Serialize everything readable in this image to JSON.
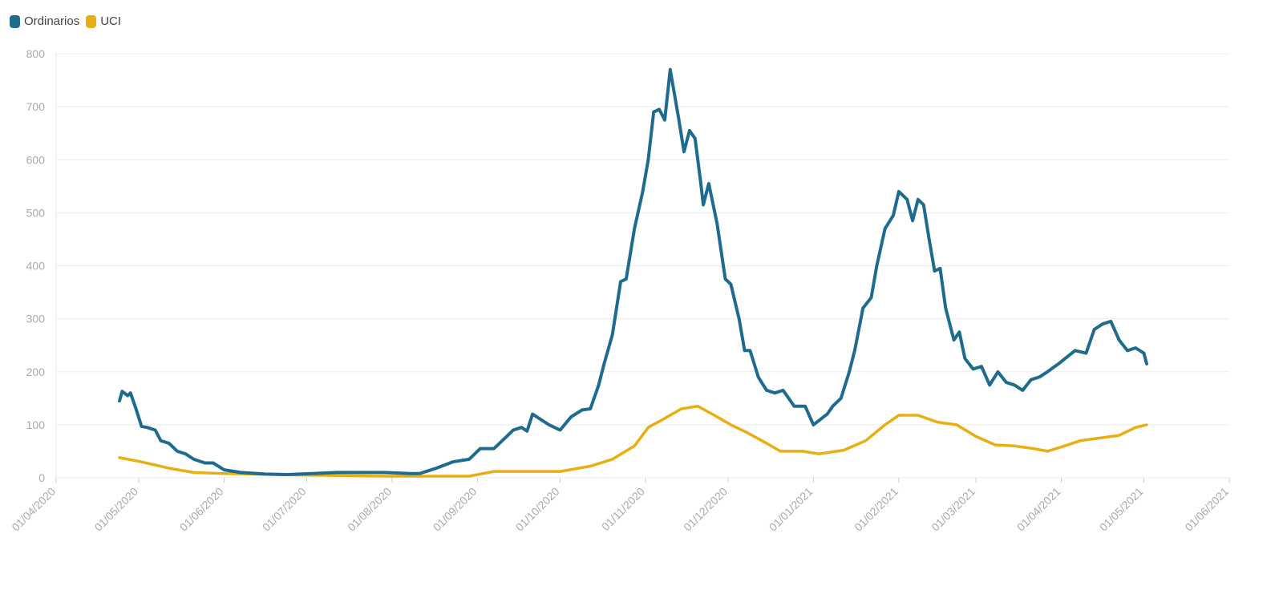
{
  "chart_data": {
    "type": "line",
    "title": "",
    "xlabel": "",
    "ylabel": "",
    "ylim": [
      0,
      800
    ],
    "xlim": [
      "2020-04-01",
      "2021-06-01"
    ],
    "yticks": [
      0,
      100,
      200,
      300,
      400,
      500,
      600,
      700,
      800
    ],
    "xticks": [
      {
        "date": "2020-04-01",
        "label": "01/04/2020"
      },
      {
        "date": "2020-05-01",
        "label": "01/05/2020"
      },
      {
        "date": "2020-06-01",
        "label": "01/06/2020"
      },
      {
        "date": "2020-07-01",
        "label": "01/07/2020"
      },
      {
        "date": "2020-08-01",
        "label": "01/08/2020"
      },
      {
        "date": "2020-09-01",
        "label": "01/09/2020"
      },
      {
        "date": "2020-10-01",
        "label": "01/10/2020"
      },
      {
        "date": "2020-11-01",
        "label": "01/11/2020"
      },
      {
        "date": "2020-12-01",
        "label": "01/12/2020"
      },
      {
        "date": "2021-01-01",
        "label": "01/01/2021"
      },
      {
        "date": "2021-02-01",
        "label": "01/02/2021"
      },
      {
        "date": "2021-03-01",
        "label": "01/03/2021"
      },
      {
        "date": "2021-04-01",
        "label": "01/04/2021"
      },
      {
        "date": "2021-05-01",
        "label": "01/05/2021"
      },
      {
        "date": "2021-06-01",
        "label": "01/06/2021"
      }
    ],
    "grid": true,
    "legend_position": "top-left",
    "series": [
      {
        "name": "Ordinarios",
        "color": "#1f6b8e",
        "points": [
          [
            "2020-04-24",
            145
          ],
          [
            "2020-04-25",
            163
          ],
          [
            "2020-04-27",
            155
          ],
          [
            "2020-04-28",
            160
          ],
          [
            "2020-04-30",
            130
          ],
          [
            "2020-05-02",
            97
          ],
          [
            "2020-05-04",
            95
          ],
          [
            "2020-05-07",
            90
          ],
          [
            "2020-05-09",
            70
          ],
          [
            "2020-05-12",
            65
          ],
          [
            "2020-05-15",
            50
          ],
          [
            "2020-05-18",
            45
          ],
          [
            "2020-05-21",
            35
          ],
          [
            "2020-05-25",
            28
          ],
          [
            "2020-05-28",
            28
          ],
          [
            "2020-06-01",
            15
          ],
          [
            "2020-06-07",
            10
          ],
          [
            "2020-06-16",
            7
          ],
          [
            "2020-06-24",
            6
          ],
          [
            "2020-07-03",
            8
          ],
          [
            "2020-07-12",
            10
          ],
          [
            "2020-07-21",
            10
          ],
          [
            "2020-07-29",
            10
          ],
          [
            "2020-08-07",
            8
          ],
          [
            "2020-08-11",
            8
          ],
          [
            "2020-08-17",
            18
          ],
          [
            "2020-08-23",
            30
          ],
          [
            "2020-08-29",
            35
          ],
          [
            "2020-09-02",
            55
          ],
          [
            "2020-09-07",
            55
          ],
          [
            "2020-09-11",
            75
          ],
          [
            "2020-09-14",
            90
          ],
          [
            "2020-09-17",
            95
          ],
          [
            "2020-09-19",
            88
          ],
          [
            "2020-09-21",
            120
          ],
          [
            "2020-09-24",
            110
          ],
          [
            "2020-09-27",
            100
          ],
          [
            "2020-10-01",
            90
          ],
          [
            "2020-10-05",
            115
          ],
          [
            "2020-10-09",
            128
          ],
          [
            "2020-10-12",
            130
          ],
          [
            "2020-10-15",
            175
          ],
          [
            "2020-10-17",
            215
          ],
          [
            "2020-10-20",
            270
          ],
          [
            "2020-10-23",
            370
          ],
          [
            "2020-10-25",
            375
          ],
          [
            "2020-10-28",
            470
          ],
          [
            "2020-10-31",
            540
          ],
          [
            "2020-11-02",
            600
          ],
          [
            "2020-11-04",
            690
          ],
          [
            "2020-11-06",
            695
          ],
          [
            "2020-11-08",
            675
          ],
          [
            "2020-11-10",
            770
          ],
          [
            "2020-11-13",
            680
          ],
          [
            "2020-11-15",
            615
          ],
          [
            "2020-11-17",
            655
          ],
          [
            "2020-11-19",
            640
          ],
          [
            "2020-11-21",
            560
          ],
          [
            "2020-11-22",
            515
          ],
          [
            "2020-11-24",
            555
          ],
          [
            "2020-11-27",
            480
          ],
          [
            "2020-11-30",
            375
          ],
          [
            "2020-12-02",
            365
          ],
          [
            "2020-12-05",
            300
          ],
          [
            "2020-12-07",
            240
          ],
          [
            "2020-12-09",
            240
          ],
          [
            "2020-12-12",
            190
          ],
          [
            "2020-12-15",
            165
          ],
          [
            "2020-12-18",
            160
          ],
          [
            "2020-12-21",
            165
          ],
          [
            "2020-12-25",
            135
          ],
          [
            "2020-12-29",
            135
          ],
          [
            "2021-01-01",
            100
          ],
          [
            "2021-01-06",
            120
          ],
          [
            "2021-01-08",
            135
          ],
          [
            "2021-01-11",
            150
          ],
          [
            "2021-01-14",
            200
          ],
          [
            "2021-01-16",
            240
          ],
          [
            "2021-01-19",
            320
          ],
          [
            "2021-01-22",
            340
          ],
          [
            "2021-01-24",
            400
          ],
          [
            "2021-01-27",
            470
          ],
          [
            "2021-01-30",
            495
          ],
          [
            "2021-02-01",
            540
          ],
          [
            "2021-02-04",
            525
          ],
          [
            "2021-02-06",
            485
          ],
          [
            "2021-02-08",
            525
          ],
          [
            "2021-02-10",
            515
          ],
          [
            "2021-02-12",
            450
          ],
          [
            "2021-02-14",
            390
          ],
          [
            "2021-02-16",
            395
          ],
          [
            "2021-02-18",
            320
          ],
          [
            "2021-02-21",
            260
          ],
          [
            "2021-02-23",
            275
          ],
          [
            "2021-02-25",
            225
          ],
          [
            "2021-02-28",
            205
          ],
          [
            "2021-03-03",
            210
          ],
          [
            "2021-03-06",
            175
          ],
          [
            "2021-03-09",
            200
          ],
          [
            "2021-03-12",
            180
          ],
          [
            "2021-03-15",
            175
          ],
          [
            "2021-03-18",
            165
          ],
          [
            "2021-03-21",
            185
          ],
          [
            "2021-03-24",
            190
          ],
          [
            "2021-03-27",
            200
          ],
          [
            "2021-03-31",
            215
          ],
          [
            "2021-04-06",
            240
          ],
          [
            "2021-04-10",
            235
          ],
          [
            "2021-04-13",
            280
          ],
          [
            "2021-04-16",
            290
          ],
          [
            "2021-04-19",
            295
          ],
          [
            "2021-04-22",
            260
          ],
          [
            "2021-04-25",
            240
          ],
          [
            "2021-04-28",
            245
          ],
          [
            "2021-05-01",
            235
          ],
          [
            "2021-05-02",
            215
          ]
        ]
      },
      {
        "name": "UCI",
        "color": "#e8ae12",
        "points": [
          [
            "2020-04-24",
            38
          ],
          [
            "2020-05-02",
            30
          ],
          [
            "2020-05-12",
            18
          ],
          [
            "2020-05-21",
            10
          ],
          [
            "2020-06-01",
            8
          ],
          [
            "2020-07-01",
            5
          ],
          [
            "2020-08-01",
            3
          ],
          [
            "2020-08-29",
            3
          ],
          [
            "2020-09-07",
            12
          ],
          [
            "2020-09-17",
            12
          ],
          [
            "2020-10-01",
            12
          ],
          [
            "2020-10-12",
            22
          ],
          [
            "2020-10-20",
            35
          ],
          [
            "2020-10-28",
            60
          ],
          [
            "2020-11-02",
            95
          ],
          [
            "2020-11-08",
            112
          ],
          [
            "2020-11-14",
            130
          ],
          [
            "2020-11-20",
            135
          ],
          [
            "2020-11-26",
            118
          ],
          [
            "2020-12-02",
            100
          ],
          [
            "2020-12-08",
            85
          ],
          [
            "2020-12-15",
            65
          ],
          [
            "2020-12-20",
            50
          ],
          [
            "2020-12-28",
            50
          ],
          [
            "2021-01-03",
            45
          ],
          [
            "2021-01-12",
            52
          ],
          [
            "2021-01-20",
            70
          ],
          [
            "2021-01-27",
            100
          ],
          [
            "2021-02-01",
            118
          ],
          [
            "2021-02-08",
            118
          ],
          [
            "2021-02-15",
            105
          ],
          [
            "2021-02-22",
            100
          ],
          [
            "2021-03-01",
            78
          ],
          [
            "2021-03-08",
            62
          ],
          [
            "2021-03-15",
            60
          ],
          [
            "2021-03-22",
            55
          ],
          [
            "2021-03-27",
            50
          ],
          [
            "2021-04-01",
            58
          ],
          [
            "2021-04-08",
            70
          ],
          [
            "2021-04-15",
            75
          ],
          [
            "2021-04-22",
            80
          ],
          [
            "2021-04-28",
            95
          ],
          [
            "2021-05-02",
            100
          ]
        ]
      }
    ]
  }
}
